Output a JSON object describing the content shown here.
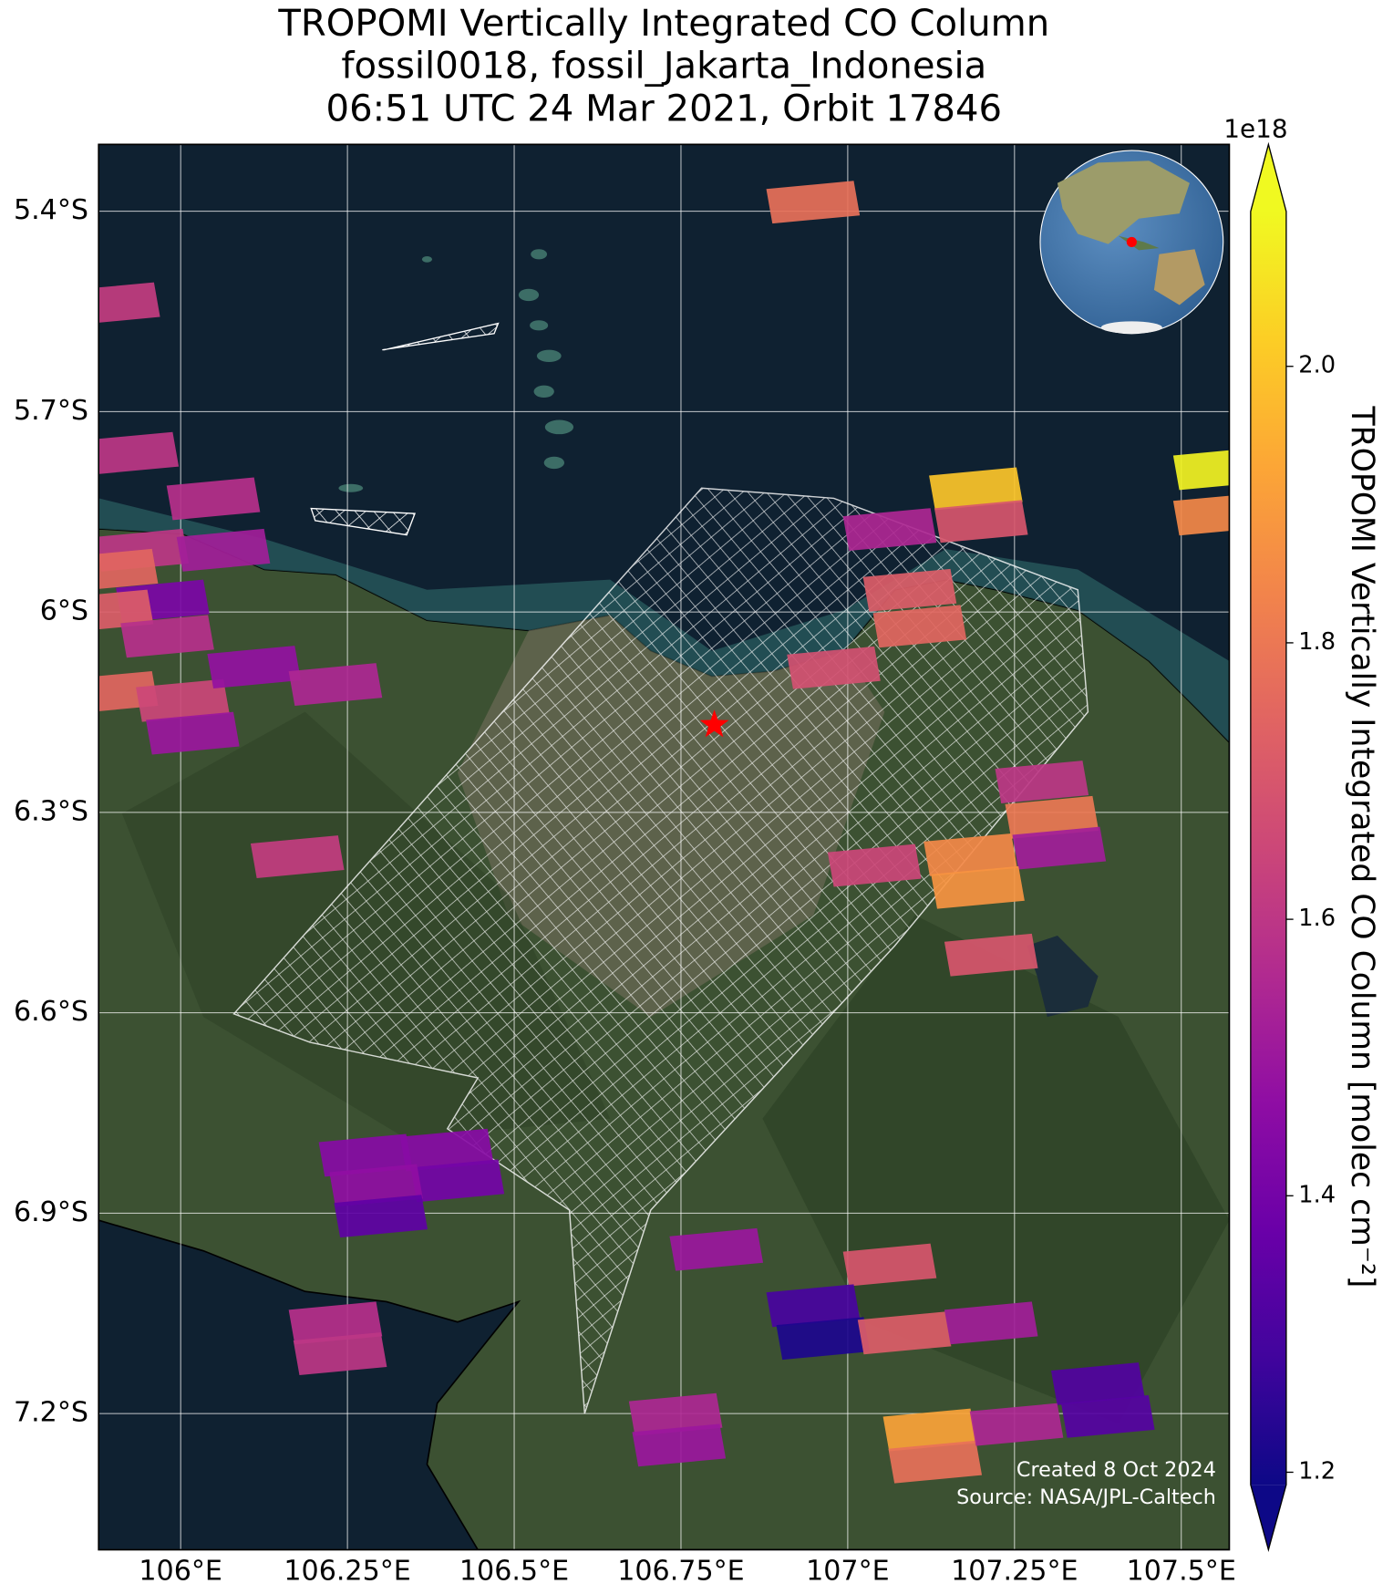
{
  "chart_data": {
    "type": "map",
    "title_lines": [
      "TROPOMI Vertically Integrated CO Column",
      "fossil0018, fossil_Jakarta_Indonesia",
      "06:51 UTC 24 Mar 2021, Orbit 17846"
    ],
    "xlim": [
      105.877,
      107.572
    ],
    "ylim": [
      -5.3,
      -7.404
    ],
    "xticks": [
      {
        "value": 106,
        "label": "106°E"
      },
      {
        "value": 106.25,
        "label": "106.25°E"
      },
      {
        "value": 106.5,
        "label": "106.5°E"
      },
      {
        "value": 106.75,
        "label": "106.75°E"
      },
      {
        "value": 107,
        "label": "107°E"
      },
      {
        "value": 107.25,
        "label": "107.25°E"
      },
      {
        "value": 107.5,
        "label": "107.5°E"
      }
    ],
    "yticks": [
      {
        "value": -5.4,
        "label": "5.4°S"
      },
      {
        "value": -5.7,
        "label": "5.7°S"
      },
      {
        "value": -6,
        "label": "6°S"
      },
      {
        "value": -6.3,
        "label": "6.3°S"
      },
      {
        "value": -6.6,
        "label": "6.6°S"
      },
      {
        "value": -6.9,
        "label": "6.9°S"
      },
      {
        "value": -7.2,
        "label": "7.2°S"
      }
    ],
    "grid": true,
    "colormap": "plasma",
    "colorbar": {
      "label": "TROPOMI Vertically Integrated CO Column [molec cm⁻²]",
      "offset_label": "1e18",
      "clim": [
        1.191,
        2.112
      ],
      "ticks": [
        1.2,
        1.4,
        1.6,
        1.8,
        {
          "value": 2,
          "label": "2.0"
        }
      ]
    },
    "site": {
      "lon": 106.8,
      "lat": -6.169,
      "color": "#ff0000"
    },
    "pixels": [
      {
        "lon": 106.948,
        "lat": -5.385,
        "value": 1.78
      },
      {
        "lon": 105.899,
        "lat": -5.537,
        "value": 1.62
      },
      {
        "lon": 105.927,
        "lat": -5.761,
        "value": 1.6
      },
      {
        "lon": 106.049,
        "lat": -5.829,
        "value": 1.58
      },
      {
        "lon": 105.942,
        "lat": -5.906,
        "value": 1.6
      },
      {
        "lon": 106.064,
        "lat": -5.906,
        "value": 1.52
      },
      {
        "lon": 105.896,
        "lat": -5.936,
        "value": 1.75
      },
      {
        "lon": 105.973,
        "lat": -5.982,
        "value": 1.42
      },
      {
        "lon": 105.889,
        "lat": -5.997,
        "value": 1.72
      },
      {
        "lon": 105.98,
        "lat": -6.035,
        "value": 1.58
      },
      {
        "lon": 105.896,
        "lat": -6.119,
        "value": 1.75
      },
      {
        "lon": 106.003,
        "lat": -6.131,
        "value": 1.65
      },
      {
        "lon": 106.11,
        "lat": -6.081,
        "value": 1.48
      },
      {
        "lon": 106.232,
        "lat": -6.107,
        "value": 1.55
      },
      {
        "lon": 106.018,
        "lat": -6.18,
        "value": 1.5
      },
      {
        "lon": 106.175,
        "lat": -6.365,
        "value": 1.62
      },
      {
        "lon": 107.192,
        "lat": -5.814,
        "value": 2.0
      },
      {
        "lon": 107.2,
        "lat": -5.863,
        "value": 1.7
      },
      {
        "lon": 107.063,
        "lat": -5.875,
        "value": 1.55
      },
      {
        "lon": 107.093,
        "lat": -5.966,
        "value": 1.72
      },
      {
        "lon": 107.108,
        "lat": -6.02,
        "value": 1.75
      },
      {
        "lon": 106.979,
        "lat": -6.082,
        "value": 1.68
      },
      {
        "lon": 107.291,
        "lat": -6.253,
        "value": 1.6
      },
      {
        "lon": 107.306,
        "lat": -6.306,
        "value": 1.8
      },
      {
        "lon": 107.317,
        "lat": -6.352,
        "value": 1.52
      },
      {
        "lon": 107.04,
        "lat": -6.378,
        "value": 1.65
      },
      {
        "lon": 107.184,
        "lat": -6.362,
        "value": 1.85
      },
      {
        "lon": 107.195,
        "lat": -6.411,
        "value": 1.88
      },
      {
        "lon": 107.215,
        "lat": -6.512,
        "value": 1.7
      },
      {
        "lon": 107.558,
        "lat": -5.784,
        "value": 2.1
      },
      {
        "lon": 107.558,
        "lat": -5.852,
        "value": 1.85
      },
      {
        "lon": 106.277,
        "lat": -6.812,
        "value": 1.45
      },
      {
        "lon": 106.399,
        "lat": -6.804,
        "value": 1.45
      },
      {
        "lon": 106.415,
        "lat": -6.85,
        "value": 1.4
      },
      {
        "lon": 106.293,
        "lat": -6.857,
        "value": 1.47
      },
      {
        "lon": 106.3,
        "lat": -6.903,
        "value": 1.35
      },
      {
        "lon": 106.803,
        "lat": -6.953,
        "value": 1.5
      },
      {
        "lon": 107.063,
        "lat": -6.976,
        "value": 1.7
      },
      {
        "lon": 106.948,
        "lat": -7.037,
        "value": 1.3
      },
      {
        "lon": 106.963,
        "lat": -7.086,
        "value": 1.22
      },
      {
        "lon": 107.085,
        "lat": -7.078,
        "value": 1.72
      },
      {
        "lon": 107.215,
        "lat": -7.063,
        "value": 1.52
      },
      {
        "lon": 107.375,
        "lat": -7.154,
        "value": 1.32
      },
      {
        "lon": 107.39,
        "lat": -7.203,
        "value": 1.33
      },
      {
        "lon": 107.123,
        "lat": -7.223,
        "value": 1.92
      },
      {
        "lon": 107.131,
        "lat": -7.271,
        "value": 1.78
      },
      {
        "lon": 107.253,
        "lat": -7.215,
        "value": 1.55
      },
      {
        "lon": 106.232,
        "lat": -7.063,
        "value": 1.58
      },
      {
        "lon": 106.239,
        "lat": -7.109,
        "value": 1.6
      },
      {
        "lon": 106.742,
        "lat": -7.2,
        "value": 1.55
      },
      {
        "lon": 106.747,
        "lat": -7.246,
        "value": 1.5
      }
    ],
    "footnotes": [
      "Created 8 Oct 2024",
      "Source: NASA/JPL-Caltech"
    ]
  }
}
